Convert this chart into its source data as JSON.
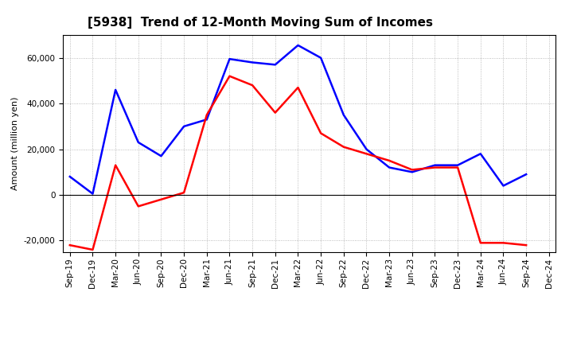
{
  "title": "[5938]  Trend of 12-Month Moving Sum of Incomes",
  "ylabel": "Amount (million yen)",
  "x_labels": [
    "Sep-19",
    "Dec-19",
    "Mar-20",
    "Jun-20",
    "Sep-20",
    "Dec-20",
    "Mar-21",
    "Jun-21",
    "Sep-21",
    "Dec-21",
    "Mar-22",
    "Jun-22",
    "Sep-22",
    "Dec-22",
    "Mar-23",
    "Jun-23",
    "Sep-23",
    "Dec-23",
    "Mar-24",
    "Jun-24",
    "Sep-24",
    "Dec-24"
  ],
  "ordinary_income": [
    8000,
    500,
    46000,
    23000,
    17000,
    30000,
    33000,
    59500,
    58000,
    57000,
    65500,
    60000,
    35000,
    20000,
    12000,
    10000,
    13000,
    13000,
    18000,
    4000,
    9000,
    null
  ],
  "net_income": [
    -22000,
    -24000,
    13000,
    -5000,
    -2000,
    1000,
    35000,
    52000,
    48000,
    36000,
    47000,
    27000,
    21000,
    18000,
    15000,
    11000,
    12000,
    12000,
    -21000,
    -21000,
    -22000,
    null
  ],
  "ordinary_income_color": "#0000ff",
  "net_income_color": "#ff0000",
  "ylim": [
    -25000,
    70000
  ],
  "yticks": [
    -20000,
    0,
    20000,
    40000,
    60000
  ],
  "background_color": "#ffffff",
  "grid_color": "#aaaaaa",
  "title_fontsize": 11,
  "legend_fontsize": 9,
  "axis_label_fontsize": 8,
  "tick_fontsize": 7.5
}
